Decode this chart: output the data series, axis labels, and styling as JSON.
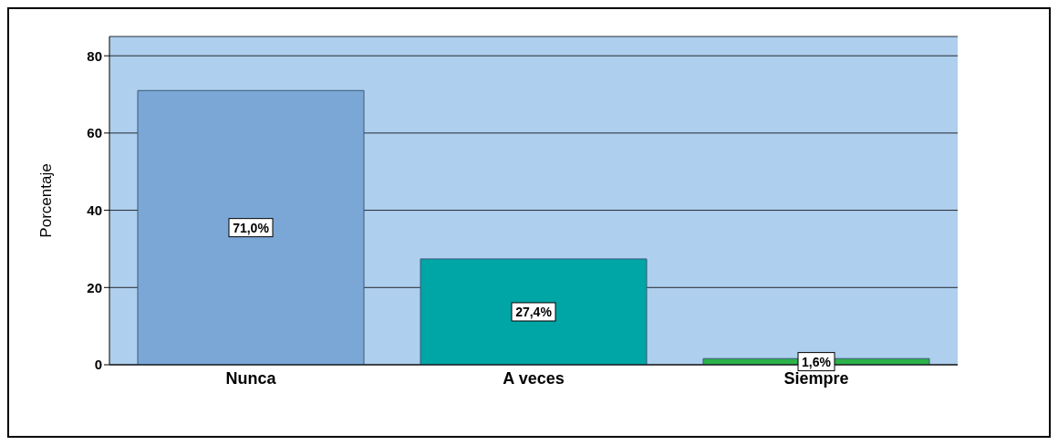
{
  "chart_data": {
    "type": "bar",
    "ylabel": "Porcentaje",
    "categories": [
      "Nunca",
      "A veces",
      "Siempre"
    ],
    "values": [
      71.0,
      27.4,
      1.6
    ],
    "colors": [
      "#7ba7d6",
      "#00a5a5",
      "#2db24a"
    ],
    "value_labels": [
      "71,0%",
      "27,4%",
      "1,6%"
    ],
    "ylim": [
      0,
      85
    ],
    "yticks": [
      0,
      20,
      40,
      60,
      80
    ],
    "grid": "y"
  }
}
